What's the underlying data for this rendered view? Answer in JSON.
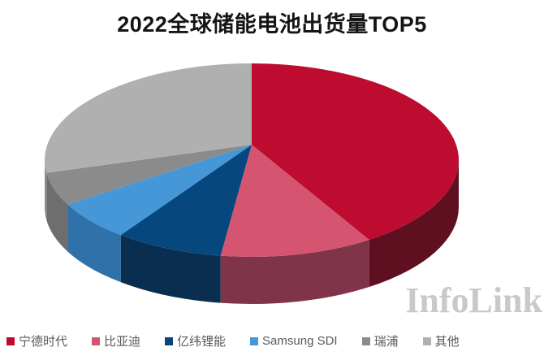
{
  "chart": {
    "title": "2022全球储能电池出货量TOP5"
  },
  "watermark": {
    "text": "InfoLink",
    "color": "#c9c9c9"
  },
  "legend": {
    "text_color": "#595959"
  },
  "chart_data": {
    "type": "pie",
    "style": "3d",
    "title": "2022全球储能电池出货量TOP5",
    "legend_position": "bottom",
    "data_labels_shown": false,
    "start_angle_deg": 0,
    "direction": "clockwise",
    "values_unit": "percent share (estimated from slice arc angles; chart shows no numeric labels)",
    "segments": [
      {
        "label": "宁德时代",
        "value": 40.4,
        "color": "#BD0C30",
        "side_color": "#5E0F20"
      },
      {
        "label": "比亚迪",
        "value": 12.0,
        "color": "#D55571",
        "side_color": "#7F3449"
      },
      {
        "label": "亿纬锂能",
        "value": 8.5,
        "color": "#06477D",
        "side_color": "#0A2E4F"
      },
      {
        "label": "Samsung SDI",
        "value": 6.5,
        "color": "#4597D7",
        "side_color": "#2F72A9"
      },
      {
        "label": "瑞浦",
        "value": 5.5,
        "color": "#8B8B8B",
        "side_color": "#6E6E6E"
      },
      {
        "label": "其他",
        "value": 27.1,
        "color": "#B0B0B0",
        "side_color": "#8D8D8D"
      }
    ]
  }
}
